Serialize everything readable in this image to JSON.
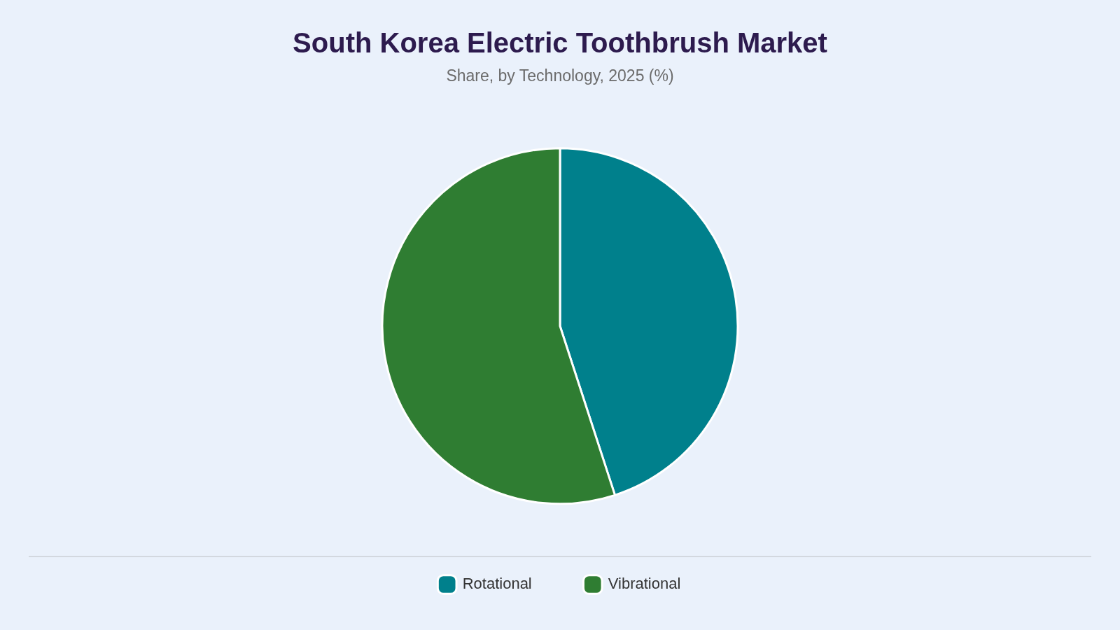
{
  "chart_data": {
    "type": "pie",
    "title": "South Korea Electric Toothbrush Market",
    "subtitle": "Share, by Technology, 2025 (%)",
    "categories": [
      "Rotational",
      "Vibrational"
    ],
    "values": [
      45,
      55
    ],
    "colors": [
      "#00808c",
      "#2f7d32"
    ],
    "legend": "bottom"
  }
}
